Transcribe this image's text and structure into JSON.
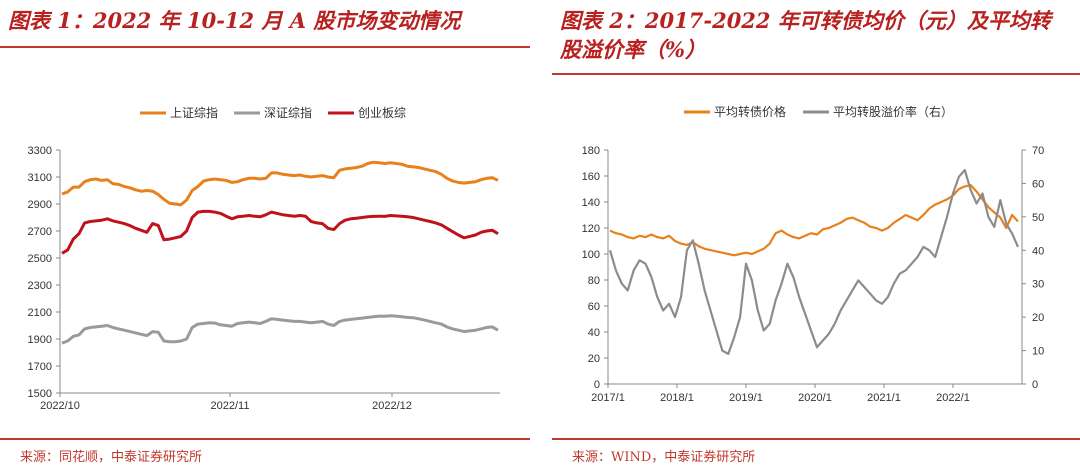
{
  "chart_data": [
    {
      "type": "line",
      "title": "图表 1：2022 年 10-12 月 A 股市场变动情况",
      "source": "来源：同花顺，中泰证券研究所",
      "x_ticks": [
        "2022/10",
        "2022/11",
        "2022/12"
      ],
      "y_ticks": [
        "3300",
        "3100",
        "2900",
        "2700",
        "2500",
        "2300",
        "2100",
        "1900",
        "1700",
        "1500"
      ],
      "ylim": [
        1500,
        3300
      ],
      "grid": false,
      "legend_position": "top-center",
      "series": [
        {
          "name": "上证综指",
          "color": "#e8811c",
          "values": [
            2975,
            2990,
            3025,
            3025,
            3065,
            3080,
            3085,
            3075,
            3080,
            3050,
            3045,
            3030,
            3020,
            3005,
            2995,
            3000,
            2995,
            2970,
            2935,
            2905,
            2900,
            2895,
            2930,
            3000,
            3030,
            3070,
            3080,
            3085,
            3080,
            3075,
            3060,
            3065,
            3080,
            3090,
            3090,
            3085,
            3090,
            3130,
            3130,
            3120,
            3115,
            3110,
            3115,
            3105,
            3100,
            3105,
            3110,
            3100,
            3095,
            3150,
            3160,
            3165,
            3170,
            3180,
            3200,
            3210,
            3205,
            3200,
            3205,
            3200,
            3195,
            3180,
            3175,
            3170,
            3160,
            3150,
            3140,
            3120,
            3090,
            3070,
            3060,
            3055,
            3060,
            3065,
            3080,
            3090,
            3095,
            3075
          ]
        },
        {
          "name": "深证综指",
          "color": "#9a9a9a",
          "values": [
            1870,
            1885,
            1920,
            1930,
            1975,
            1985,
            1990,
            1995,
            2000,
            1985,
            1975,
            1965,
            1955,
            1945,
            1935,
            1925,
            1955,
            1950,
            1885,
            1880,
            1880,
            1885,
            1900,
            1985,
            2010,
            2015,
            2020,
            2018,
            2005,
            2000,
            1995,
            2015,
            2020,
            2025,
            2020,
            2015,
            2030,
            2050,
            2045,
            2040,
            2035,
            2030,
            2030,
            2025,
            2020,
            2025,
            2030,
            2010,
            2000,
            2030,
            2040,
            2045,
            2050,
            2055,
            2060,
            2065,
            2070,
            2068,
            2072,
            2070,
            2065,
            2060,
            2058,
            2050,
            2040,
            2030,
            2020,
            2010,
            1990,
            1975,
            1965,
            1955,
            1960,
            1965,
            1975,
            1985,
            1990,
            1965
          ]
        },
        {
          "name": "创业板综",
          "color": "#c0121a",
          "values": [
            2535,
            2560,
            2640,
            2680,
            2760,
            2770,
            2775,
            2780,
            2790,
            2775,
            2765,
            2755,
            2740,
            2720,
            2705,
            2690,
            2755,
            2740,
            2635,
            2640,
            2650,
            2660,
            2700,
            2800,
            2840,
            2845,
            2845,
            2840,
            2830,
            2810,
            2790,
            2805,
            2810,
            2815,
            2810,
            2805,
            2820,
            2840,
            2830,
            2820,
            2815,
            2810,
            2815,
            2810,
            2770,
            2760,
            2755,
            2720,
            2710,
            2755,
            2780,
            2790,
            2795,
            2800,
            2805,
            2808,
            2810,
            2808,
            2815,
            2812,
            2810,
            2805,
            2800,
            2790,
            2780,
            2770,
            2760,
            2745,
            2720,
            2695,
            2670,
            2650,
            2660,
            2670,
            2690,
            2700,
            2705,
            2680
          ]
        }
      ]
    },
    {
      "type": "line",
      "title": "图表 2：2017-2022 年可转债均价（元）及平均转股溢价率（%）",
      "source": "来源：WIND，中泰证券研究所",
      "x_ticks": [
        "2017/1",
        "2018/1",
        "2019/1",
        "2020/1",
        "2021/1",
        "2022/1"
      ],
      "y_left_ticks": [
        "180",
        "160",
        "140",
        "120",
        "100",
        "80",
        "60",
        "40",
        "20",
        "0"
      ],
      "y_right_ticks": [
        "70",
        "60",
        "50",
        "40",
        "30",
        "20",
        "10",
        "0"
      ],
      "ylim_left": [
        0,
        180
      ],
      "ylim_right": [
        0,
        70
      ],
      "grid": false,
      "legend_position": "top-center",
      "series": [
        {
          "name": "平均转债价格",
          "color": "#e8811c",
          "axis": "left",
          "values": [
            118,
            116,
            115,
            113,
            112,
            114,
            113,
            115,
            113,
            112,
            114,
            110,
            108,
            107,
            109,
            106,
            104,
            103,
            102,
            101,
            100,
            99,
            100,
            101,
            100,
            102,
            104,
            108,
            116,
            118,
            115,
            113,
            112,
            114,
            116,
            115,
            119,
            120,
            122,
            124,
            127,
            128,
            126,
            124,
            121,
            120,
            118,
            120,
            124,
            127,
            130,
            128,
            126,
            130,
            135,
            138,
            140,
            142,
            145,
            150,
            152,
            153,
            148,
            142,
            136,
            132,
            128,
            120,
            130,
            125
          ]
        },
        {
          "name": "平均转股溢价率（右）",
          "color": "#8c8c8c",
          "axis": "right",
          "values": [
            40,
            34,
            30,
            28,
            34,
            37,
            36,
            32,
            26,
            22,
            24,
            20,
            26,
            40,
            43,
            36,
            28,
            22,
            16,
            10,
            9,
            14,
            20,
            36,
            31,
            22,
            16,
            18,
            25,
            30,
            36,
            32,
            26,
            21,
            16,
            11,
            13,
            15,
            18,
            22,
            25,
            28,
            31,
            29,
            27,
            25,
            24,
            26,
            30,
            33,
            34,
            36,
            38,
            41,
            40,
            38,
            44,
            50,
            57,
            62,
            64,
            58,
            54,
            57,
            50,
            47,
            55,
            48,
            45,
            41
          ]
        }
      ]
    }
  ]
}
